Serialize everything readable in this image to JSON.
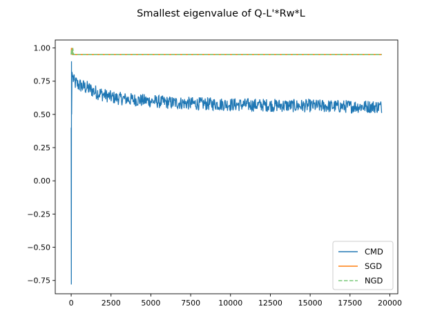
{
  "chart_data": {
    "type": "line",
    "title": "Smallest eigenvalue of Q-L'*Rw*L",
    "xlabel": "",
    "ylabel": "",
    "xlim": [
      -1000,
      20500
    ],
    "ylim": [
      -0.85,
      1.06
    ],
    "x_ticks": [
      0,
      2500,
      5000,
      7500,
      10000,
      12500,
      15000,
      17500,
      20000
    ],
    "x_tick_labels": [
      "0",
      "2500",
      "5000",
      "7500",
      "10000",
      "12500",
      "15000",
      "17500",
      "20000"
    ],
    "y_ticks": [
      -0.75,
      -0.5,
      -0.25,
      0.0,
      0.25,
      0.5,
      0.75,
      1.0
    ],
    "y_tick_labels": [
      "−0.75",
      "−0.50",
      "−0.25",
      "0.00",
      "0.25",
      "0.50",
      "0.75",
      "1.00"
    ],
    "grid": false,
    "legend_position": "lower-right",
    "series": [
      {
        "name": "CMD",
        "color": "#1f77b4",
        "style": "solid",
        "x": [
          0,
          10,
          20,
          30,
          50,
          100,
          200,
          500,
          1000,
          1500,
          2000,
          2500,
          3000,
          4000,
          5000,
          6000,
          7000,
          8000,
          9000,
          10000,
          11000,
          12000,
          13000,
          14000,
          15000,
          16000,
          17000,
          18000,
          19000,
          19500
        ],
        "y": [
          0.4,
          -0.78,
          0.9,
          0.5,
          0.82,
          0.78,
          0.74,
          0.72,
          0.7,
          0.67,
          0.65,
          0.63,
          0.62,
          0.61,
          0.6,
          0.59,
          0.585,
          0.58,
          0.578,
          0.575,
          0.572,
          0.57,
          0.568,
          0.565,
          0.565,
          0.562,
          0.56,
          0.56,
          0.558,
          0.558
        ],
        "noise_amplitude": 0.05
      },
      {
        "name": "SGD",
        "color": "#ff7f0e",
        "style": "solid",
        "x": [
          0,
          20,
          40,
          60,
          100,
          19500
        ],
        "y": [
          0.95,
          1.0,
          0.95,
          1.0,
          0.95,
          0.95
        ]
      },
      {
        "name": "NGD",
        "color": "#77c777",
        "style": "dashed",
        "x": [
          0,
          30,
          60,
          100,
          150,
          19500
        ],
        "y": [
          0.95,
          0.99,
          0.95,
          1.0,
          0.95,
          0.95
        ]
      }
    ]
  }
}
